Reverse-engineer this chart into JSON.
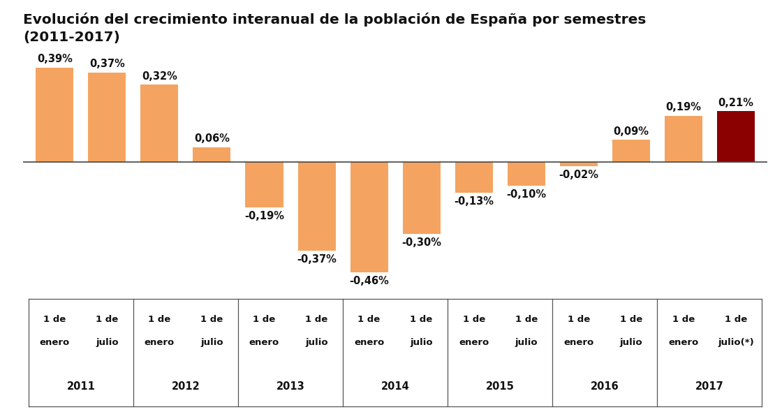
{
  "title": "Evolución del crecimiento interanual de la población de España por semestres\n(2011-2017)",
  "values": [
    0.39,
    0.37,
    0.32,
    0.06,
    -0.19,
    -0.37,
    -0.46,
    -0.3,
    -0.13,
    -0.1,
    -0.02,
    0.09,
    0.19,
    0.21
  ],
  "labels": [
    "0,39%",
    "0,37%",
    "0,32%",
    "0,06%",
    "-0,19%",
    "-0,37%",
    "-0,46%",
    "-0,30%",
    "-0,13%",
    "-0,10%",
    "-0,02%",
    "0,09%",
    "0,19%",
    "0,21%"
  ],
  "bar_colors": [
    "#F4A460",
    "#F4A460",
    "#F4A460",
    "#F4A460",
    "#F4A460",
    "#F4A460",
    "#F4A460",
    "#F4A460",
    "#F4A460",
    "#F4A460",
    "#F4A460",
    "#F4A460",
    "#F4A460",
    "#8B0000"
  ],
  "tick_top_labels": [
    "1 de",
    "1 de",
    "1 de",
    "1 de",
    "1 de",
    "1 de",
    "1 de",
    "1 de",
    "1 de",
    "1 de",
    "1 de",
    "1 de",
    "1 de",
    "1 de"
  ],
  "tick_bot_labels": [
    "enero",
    "julio",
    "enero",
    "julio",
    "enero",
    "julio",
    "enero",
    "julio",
    "enero",
    "julio",
    "enero",
    "julio",
    "enero",
    "julio(*)"
  ],
  "year_labels": [
    "2011",
    "2012",
    "2013",
    "2014",
    "2015",
    "2016",
    "2017"
  ],
  "year_positions": [
    0.5,
    2.5,
    4.5,
    6.5,
    8.5,
    10.5,
    12.5
  ],
  "separator_positions": [
    -0.5,
    1.5,
    3.5,
    5.5,
    7.5,
    9.5,
    11.5,
    13.5
  ],
  "ylim": [
    -0.56,
    0.5
  ],
  "xlim": [
    -0.6,
    13.6
  ],
  "background_color": "#FFFFFF",
  "bar_color_salmon": "#F4A460",
  "bar_color_dark_red": "#8B0000",
  "bar_width": 0.72,
  "title_fontsize": 14.5,
  "label_fontsize": 10.5,
  "tick_fontsize": 9.5,
  "year_fontsize": 10.5
}
